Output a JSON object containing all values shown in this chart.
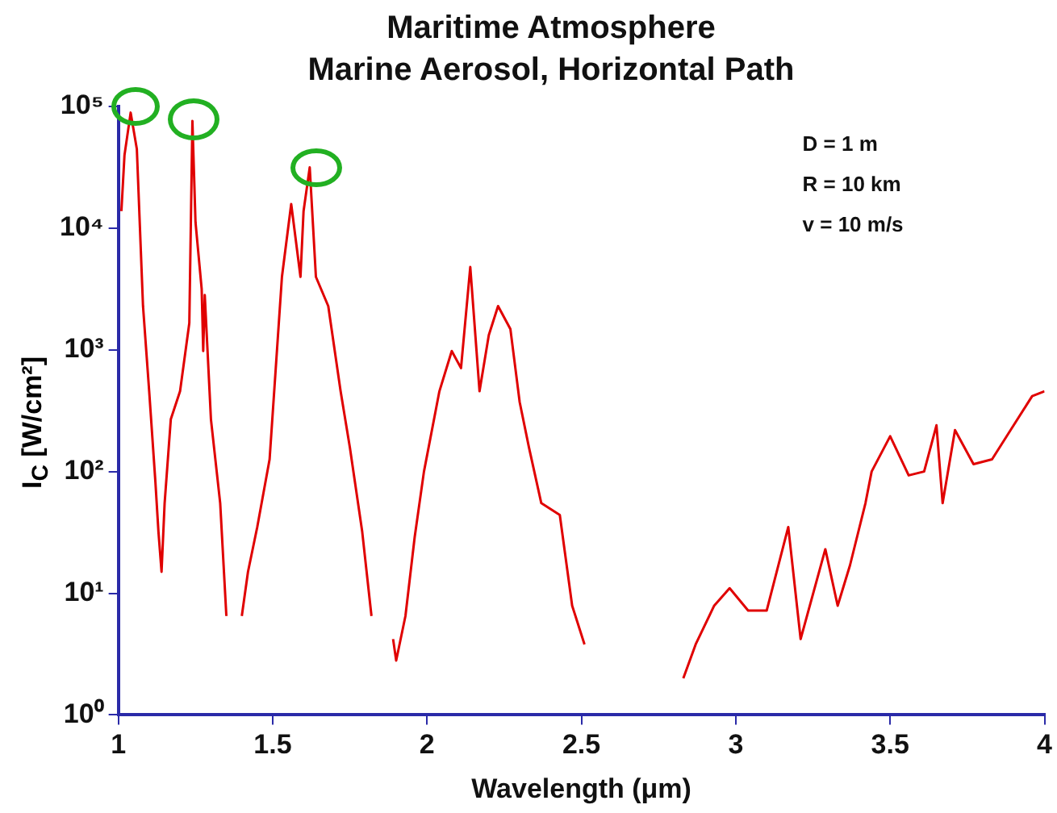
{
  "chart_data": {
    "type": "line",
    "title": "Maritime Atmosphere",
    "subtitle": "Marine Aerosol, Horizontal Path",
    "xlabel": "Wavelength (μm)",
    "ylabel": "I$_{C}$ [W/cm²]",
    "annotations": [
      "D = 1 m",
      "R = 10 km",
      "v = 10 m/s"
    ],
    "log": "y",
    "grid": false,
    "legend": false,
    "marker": "none",
    "line_style": "solid",
    "xlim": [
      1,
      4
    ],
    "xticks": [
      1,
      1.5,
      2,
      2.5,
      3,
      3.5,
      4
    ],
    "ylim": [
      1,
      100000
    ],
    "yticks": [
      {
        "value": 1,
        "label": "10⁰"
      },
      {
        "value": 10,
        "label": "10¹"
      },
      {
        "value": 100,
        "label": "10²"
      },
      {
        "value": 1000,
        "label": "10³"
      },
      {
        "value": 10000,
        "label": "10⁴"
      },
      {
        "value": 100000,
        "label": "10⁵"
      }
    ],
    "series": [
      {
        "color": "#e00000",
        "x": [
          1.01,
          1.02,
          1.04,
          1.06,
          1.08,
          1.1,
          1.12,
          1.13,
          1.14,
          1.15,
          1.17,
          1.2,
          1.23,
          1.24,
          1.25,
          1.27,
          1.275,
          1.28,
          1.3,
          1.33,
          1.35,
          1.37,
          1.4,
          1.42,
          1.45,
          1.49,
          1.51,
          1.53,
          1.56,
          1.59,
          1.6,
          1.62,
          1.64,
          1.68,
          1.72,
          1.75,
          1.79,
          1.82,
          1.85,
          1.89,
          1.9,
          1.93,
          1.96,
          1.99,
          2.04,
          2.08,
          2.11,
          2.14,
          2.17,
          2.2,
          2.23,
          2.27,
          2.3,
          2.33,
          2.37,
          2.43,
          2.47,
          2.51,
          2.67,
          2.83,
          2.87,
          2.93,
          2.98,
          3.04,
          3.1,
          3.17,
          3.21,
          3.29,
          3.33,
          3.37,
          3.42,
          3.44,
          3.5,
          3.56,
          3.61,
          3.65,
          3.67,
          3.71,
          3.77,
          3.83,
          3.89,
          3.96,
          4
        ],
        "values": [
          13800,
          39800,
          89000,
          44700,
          2290,
          457,
          83,
          32,
          15,
          55,
          269,
          457,
          1660,
          75900,
          11200,
          3160,
          977,
          2820,
          269,
          55,
          6.5,
          null,
          6.5,
          15,
          35,
          126,
          708,
          3980,
          15800,
          3980,
          13800,
          31600,
          3980,
          2290,
          457,
          158,
          32,
          6.5,
          null,
          4.2,
          2.8,
          6.5,
          29,
          100,
          457,
          977,
          708,
          4790,
          457,
          1320,
          2290,
          1480,
          372,
          158,
          55,
          44,
          7.9,
          3.8,
          null,
          2,
          3.8,
          7.9,
          11,
          7.2,
          7.2,
          35,
          4.2,
          23,
          7.9,
          17,
          55,
          100,
          195,
          93,
          100,
          240,
          55,
          219,
          115,
          126,
          219,
          417,
          457
        ]
      }
    ]
  }
}
